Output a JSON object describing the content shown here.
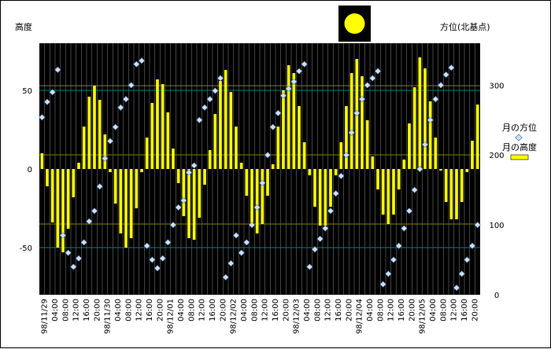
{
  "chart_data": {
    "type": "bar",
    "title": "",
    "y_left_label": "高度",
    "y_right_label": "方位(北基点)",
    "y_left_range": [
      -80,
      80
    ],
    "y_left_ticks": [
      -50,
      0,
      50
    ],
    "y_right_range": [
      0,
      360
    ],
    "y_right_ticks": [
      0,
      100,
      200,
      300
    ],
    "x_ticks": [
      "98/11/29",
      "04:00",
      "08:00",
      "12:00",
      "16:00",
      "20:00",
      "98/11/30",
      "04:00",
      "08:00",
      "12:00",
      "16:00",
      "20:00",
      "98/12/01",
      "04:00",
      "08:00",
      "12:00",
      "16:00",
      "20:00",
      "98/12/02",
      "04:00",
      "08:00",
      "12:00",
      "16:00",
      "20:00",
      "98/12/03",
      "04:00",
      "08:00",
      "12:00",
      "16:00",
      "20:00",
      "98/12/04",
      "04:00",
      "08:00",
      "12:00",
      "16:00",
      "20:00",
      "98/12/05",
      "04:00",
      "08:00",
      "12:00",
      "16:00",
      "20:00"
    ],
    "interval_hours": 2,
    "start": "98/11/29 00:00",
    "legend_position": "right",
    "grid": true,
    "reference_lines_left": [
      -50,
      -35,
      9,
      50,
      53
    ],
    "colors": {
      "plot_bg": "#000000",
      "bar": "#ffff00",
      "marker": "#cce0ff",
      "vgrid": "#707070",
      "hgrid_teal": "#008080",
      "hgrid_olive": "#808000"
    },
    "series": [
      {
        "name": "月の高度",
        "axis": "left",
        "kind": "bar",
        "values": [
          10,
          -11,
          -34,
          -50,
          -53,
          -38,
          -18,
          4,
          27,
          46,
          53,
          44,
          22,
          -2,
          -22,
          -41,
          -50,
          -44,
          -25,
          -2,
          20,
          42,
          57,
          54,
          36,
          13,
          -9,
          -30,
          -44,
          -45,
          -31,
          -10,
          12,
          35,
          56,
          63,
          49,
          27,
          4,
          -17,
          -35,
          -41,
          -35,
          -17,
          3,
          27,
          50,
          66,
          61,
          40,
          17,
          -4,
          -24,
          -36,
          -36,
          -24,
          -4,
          17,
          40,
          61,
          70,
          59,
          31,
          8,
          -13,
          -29,
          -35,
          -29,
          -13,
          6,
          29,
          52,
          71,
          64,
          43,
          20,
          -1,
          -21,
          -32,
          -32,
          -21,
          -2,
          18,
          41
        ]
      },
      {
        "name": "月の方位",
        "axis": "right",
        "kind": "marker",
        "values": [
          254,
          276,
          290,
          322,
          85,
          60,
          40,
          52,
          75,
          105,
          120,
          155,
          195,
          220,
          240,
          268,
          280,
          300,
          330,
          335,
          70,
          50,
          38,
          52,
          75,
          100,
          125,
          135,
          175,
          185,
          250,
          268,
          280,
          292,
          310,
          25,
          45,
          85,
          60,
          75,
          100,
          125,
          160,
          200,
          240,
          260,
          285,
          295,
          305,
          320,
          330,
          40,
          65,
          80,
          95,
          120,
          145,
          170,
          200,
          232,
          260,
          280,
          300,
          310,
          320,
          15,
          30,
          50,
          70,
          95,
          120,
          150,
          180,
          215,
          250,
          280,
          300,
          315,
          325,
          10,
          30,
          50,
          70,
          100
        ]
      }
    ]
  },
  "legend": [
    {
      "label": "月の方位",
      "marker": "diamond"
    },
    {
      "label": "月の高度",
      "marker": "bar"
    }
  ],
  "icons": {
    "moon": "full-moon-icon"
  }
}
